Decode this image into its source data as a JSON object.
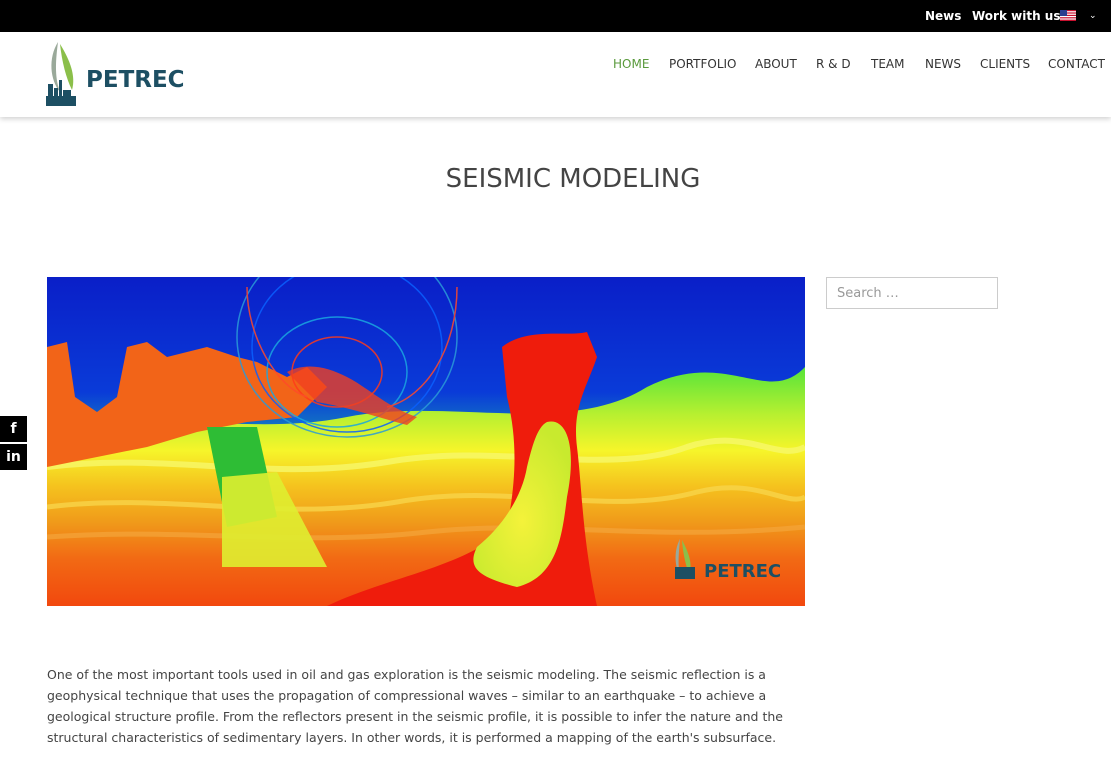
{
  "topbar": {
    "links": [
      "News",
      "Work with us"
    ],
    "language": "English (US)",
    "caret": "⌄"
  },
  "header": {
    "logo_text": "PETREC",
    "nav": [
      "HOME",
      "PORTFOLIO",
      "ABOUT",
      "R & D",
      "TEAM",
      "NEWS",
      "CLIENTS",
      "CONTACT"
    ],
    "active_nav": "HOME"
  },
  "page": {
    "title": "SEISMIC MODELING"
  },
  "hero_image": {
    "watermark": "PETREC"
  },
  "social": {
    "facebook": "f",
    "linkedin": "in"
  },
  "sidebar": {
    "search_placeholder": "Search …"
  },
  "content": {
    "paragraph": "One of the most important tools used in oil and gas exploration is the seismic modeling. The seismic reflection is a geophysical technique that uses the propagation of compressional waves – similar to an earthquake – to achieve a geological structure profile. From the reflectors present in the seismic profile, it is possible to infer the nature and the structural characteristics of sedimentary layers. In other words, it is performed a mapping of the earth's subsurface."
  },
  "colors": {
    "brand": "#1d4f63",
    "active_nav": "#5a9a3c",
    "topbar": "#000000"
  }
}
